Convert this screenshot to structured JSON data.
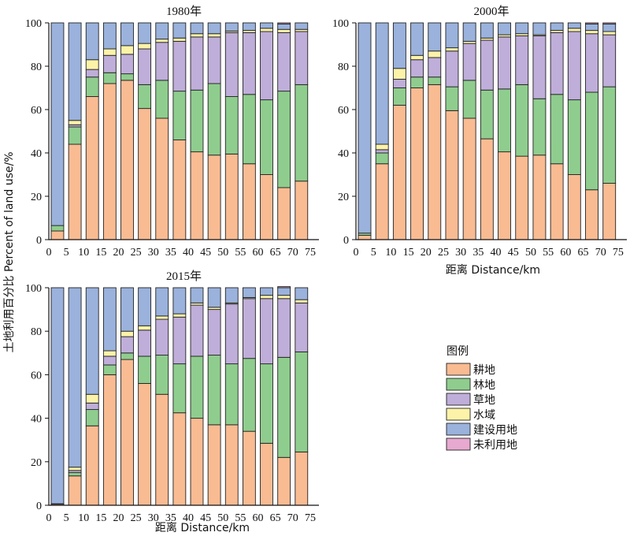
{
  "y_axis_label": "土地利用百分比 Percent of land use/%",
  "x_axis_label": "距离 Distance/km",
  "legend": {
    "title": "图例",
    "items": [
      {
        "key": "farmland",
        "label": "耕地",
        "color": "#F9BB92"
      },
      {
        "key": "forest",
        "label": "林地",
        "color": "#8FCD8E"
      },
      {
        "key": "grassland",
        "label": "草地",
        "color": "#BFAED9"
      },
      {
        "key": "water",
        "label": "水域",
        "color": "#FCF3A8"
      },
      {
        "key": "builtup",
        "label": "建设用地",
        "color": "#9AB2DC"
      },
      {
        "key": "unused",
        "label": "未利用地",
        "color": "#E7A9CF"
      }
    ]
  },
  "chart_data": [
    {
      "type": "bar",
      "stacked": true,
      "title": "1980年",
      "categories": [
        "0",
        "5",
        "10",
        "15",
        "20",
        "25",
        "30",
        "35",
        "40",
        "45",
        "50",
        "55",
        "60",
        "65",
        "70",
        "75"
      ],
      "ylim": [
        0,
        100
      ],
      "yticks": [
        0,
        20,
        40,
        60,
        80,
        100
      ],
      "series": [
        {
          "name": "耕地",
          "values": [
            4,
            44,
            66,
            72,
            73.5,
            60.5,
            56,
            46,
            40.5,
            39,
            39.5,
            35,
            30,
            24,
            27,
            0
          ]
        },
        {
          "name": "林地",
          "values": [
            2.5,
            8,
            9,
            5,
            3,
            11,
            17.5,
            22.5,
            28.5,
            33,
            26.5,
            32,
            34.5,
            44.5,
            44.5,
            0
          ]
        },
        {
          "name": "草地",
          "values": [
            0,
            1,
            3.5,
            8,
            9,
            16.5,
            17.5,
            23,
            24.5,
            21.5,
            29.5,
            28.5,
            31.5,
            27,
            24.5,
            0
          ]
        },
        {
          "name": "水域",
          "values": [
            0,
            2,
            4.5,
            3,
            4,
            2.5,
            1.5,
            1.5,
            1.5,
            1.5,
            0.7,
            1,
            1.5,
            1.5,
            1,
            0
          ]
        },
        {
          "name": "建设用地",
          "values": [
            93.5,
            45,
            17,
            12,
            10.5,
            9.5,
            7.5,
            7,
            5,
            5,
            3.8,
            3.5,
            2.5,
            2.5,
            3,
            0
          ]
        },
        {
          "name": "未利用地",
          "values": [
            0,
            0,
            0,
            0,
            0,
            0,
            0,
            0,
            0,
            0,
            0,
            0,
            0,
            0.5,
            0,
            0
          ]
        }
      ]
    },
    {
      "type": "bar",
      "stacked": true,
      "title": "2000年",
      "categories": [
        "0",
        "5",
        "10",
        "15",
        "20",
        "25",
        "30",
        "35",
        "40",
        "45",
        "50",
        "55",
        "60",
        "65",
        "70",
        "75"
      ],
      "ylim": [
        0,
        100
      ],
      "yticks": [
        0,
        20,
        40,
        60,
        80,
        100
      ],
      "series": [
        {
          "name": "耕地",
          "values": [
            2,
            35,
            62,
            70,
            71.5,
            59.5,
            56,
            46.5,
            40.5,
            38.5,
            39,
            35,
            30,
            23,
            26,
            0
          ]
        },
        {
          "name": "林地",
          "values": [
            1,
            5,
            8,
            5,
            3.5,
            11,
            17.5,
            22.5,
            29,
            33,
            26,
            32,
            34.5,
            45,
            44.5,
            0
          ]
        },
        {
          "name": "草地",
          "values": [
            0,
            1.5,
            4,
            8,
            9,
            16.5,
            17,
            23,
            24,
            22.5,
            29,
            28.5,
            31.5,
            27,
            24,
            0
          ]
        },
        {
          "name": "水域",
          "values": [
            0,
            2.5,
            5,
            2,
            3,
            1.5,
            1,
            1,
            1,
            1,
            0.5,
            1,
            1.5,
            1.5,
            1.5,
            0
          ]
        },
        {
          "name": "建设用地",
          "values": [
            97,
            56,
            21,
            15,
            13,
            11.5,
            8.5,
            7,
            5.5,
            5,
            5.5,
            3.5,
            2.5,
            3,
            3.5,
            0
          ]
        },
        {
          "name": "未利用地",
          "values": [
            0,
            0,
            0,
            0,
            0,
            0,
            0,
            0,
            0,
            0,
            0,
            0,
            0,
            0.5,
            0.5,
            0
          ]
        }
      ]
    },
    {
      "type": "bar",
      "stacked": true,
      "title": "2015年",
      "categories": [
        "0",
        "5",
        "10",
        "15",
        "20",
        "25",
        "30",
        "35",
        "40",
        "45",
        "50",
        "55",
        "60",
        "65",
        "70",
        "75"
      ],
      "ylim": [
        0,
        100
      ],
      "yticks": [
        0,
        20,
        40,
        60,
        80,
        100
      ],
      "series": [
        {
          "name": "耕地",
          "values": [
            0.5,
            13.5,
            36.5,
            60,
            67,
            56,
            51,
            42.5,
            40,
            37,
            37,
            34,
            28.5,
            22,
            24.5,
            0
          ]
        },
        {
          "name": "林地",
          "values": [
            0.2,
            1.5,
            7.5,
            4.5,
            3,
            12.5,
            18,
            22.5,
            28.5,
            32,
            28,
            33.5,
            36.5,
            46,
            46,
            0
          ]
        },
        {
          "name": "草地",
          "values": [
            0,
            1,
            3,
            4,
            7.5,
            12,
            16.5,
            21.5,
            23.5,
            21,
            27.5,
            27.5,
            30,
            27,
            22.5,
            0
          ]
        },
        {
          "name": "水域",
          "values": [
            0,
            1.5,
            4,
            2.5,
            2.5,
            2,
            1.5,
            1.5,
            1,
            1,
            0.5,
            0.5,
            1.5,
            1.5,
            1.5,
            0
          ]
        },
        {
          "name": "建设用地",
          "values": [
            99.3,
            82.5,
            49,
            29,
            20,
            17.5,
            13,
            12,
            7,
            9,
            7,
            4.5,
            3.5,
            3.5,
            5.5,
            0
          ]
        },
        {
          "name": "未利用地",
          "values": [
            0,
            0,
            0,
            0,
            0,
            0,
            0,
            0,
            0,
            0,
            0,
            0,
            0,
            0.5,
            0,
            0
          ]
        }
      ]
    }
  ]
}
